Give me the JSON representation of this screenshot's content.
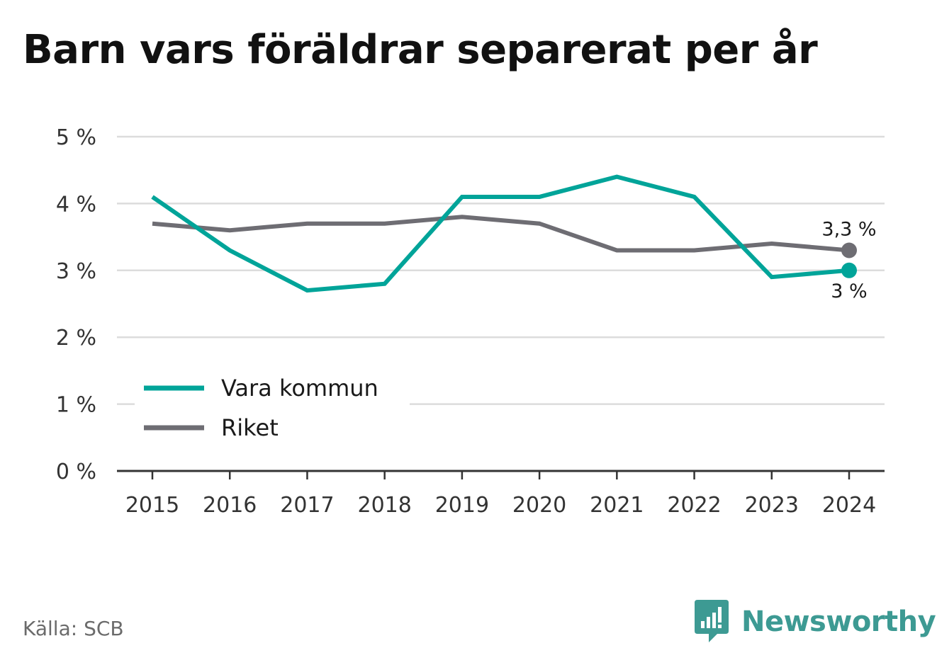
{
  "chart_data": {
    "type": "line",
    "title": "Barn vars föräldrar separerat per år",
    "xlabel": "",
    "ylabel": "",
    "categories": [
      "2015",
      "2016",
      "2017",
      "2018",
      "2019",
      "2020",
      "2021",
      "2022",
      "2023",
      "2024"
    ],
    "yticks": [
      "0 %",
      "1 %",
      "2 %",
      "3 %",
      "4 %",
      "5 %"
    ],
    "ylim": [
      0,
      5
    ],
    "grid": true,
    "legend_position": "bottom-left",
    "series": [
      {
        "name": "Vara kommun",
        "color": "#00a499",
        "values": [
          4.1,
          3.3,
          2.7,
          2.8,
          4.1,
          4.1,
          4.4,
          4.1,
          2.9,
          3.0
        ],
        "end_label": "3 %"
      },
      {
        "name": "Riket",
        "color": "#6e6d73",
        "values": [
          3.7,
          3.6,
          3.7,
          3.7,
          3.8,
          3.7,
          3.3,
          3.3,
          3.4,
          3.3
        ],
        "end_label": "3,3 %"
      }
    ]
  },
  "footer": {
    "source": "Källa: SCB",
    "brand": "Newsworthy"
  },
  "colors": {
    "grid": "#dcdcdc",
    "axis": "#333333",
    "brand": "#3d9a93"
  }
}
